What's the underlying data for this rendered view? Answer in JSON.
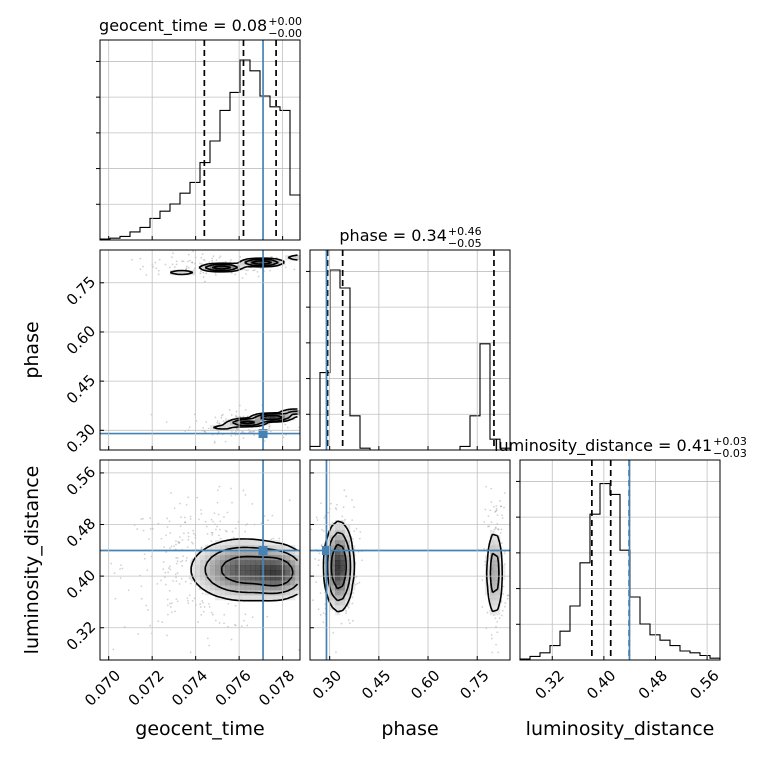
{
  "chart_data": {
    "type": "corner",
    "grid": true,
    "colors": {
      "truth": "#4682b4",
      "hist": "#000000",
      "density": "#000000",
      "grid": "#c0c0c0"
    },
    "parameters": [
      {
        "key": "geocent_time",
        "axis_label": "geocent_time",
        "title": {
          "prefix": "geocent_time = ",
          "median": "0.08",
          "plus": "+0.00",
          "minus": "−0.00"
        },
        "range": [
          0.0696,
          0.0788
        ],
        "ticks": [
          0.07,
          0.072,
          0.074,
          0.076,
          0.078
        ],
        "tick_labels": [
          "0.070",
          "0.072",
          "0.074",
          "0.076",
          "0.078"
        ],
        "truth": 0.0771,
        "quantiles": [
          0.0744,
          0.0762,
          0.0777
        ],
        "hist": {
          "edges": [
            0.0696,
            0.07006,
            0.07052,
            0.07098,
            0.07144,
            0.0719,
            0.07236,
            0.07282,
            0.07328,
            0.07374,
            0.0742,
            0.07466,
            0.07512,
            0.07558,
            0.07604,
            0.0765,
            0.07696,
            0.07742,
            0.07788,
            0.07834,
            0.0788
          ],
          "counts": [
            0.005,
            0.01,
            0.02,
            0.045,
            0.07,
            0.12,
            0.16,
            0.2,
            0.26,
            0.32,
            0.43,
            0.55,
            0.72,
            0.82,
            1.0,
            0.94,
            0.8,
            0.74,
            0.72,
            0.25
          ]
        }
      },
      {
        "key": "phase",
        "axis_label": "phase",
        "title": {
          "prefix": "phase = ",
          "median": "0.34",
          "plus": "+0.46",
          "minus": "−0.05"
        },
        "range": [
          0.24,
          0.85
        ],
        "ticks": [
          0.3,
          0.45,
          0.6,
          0.75
        ],
        "tick_labels": [
          "0.30",
          "0.45",
          "0.60",
          "0.75"
        ],
        "truth": 0.2902,
        "quantiles": [
          0.2936,
          0.3396,
          0.8011
        ],
        "hist": {
          "edges": [
            0.24,
            0.2705,
            0.301,
            0.3315,
            0.362,
            0.3925,
            0.423,
            0.4535,
            0.484,
            0.5145,
            0.545,
            0.5755,
            0.606,
            0.6365,
            0.667,
            0.6975,
            0.728,
            0.7585,
            0.789,
            0.8195,
            0.85
          ],
          "counts": [
            0.02,
            0.43,
            1.0,
            0.9,
            0.19,
            0.01,
            0,
            0,
            0,
            0,
            0,
            0,
            0,
            0,
            0,
            0.02,
            0.19,
            0.59,
            0.06,
            0.01
          ]
        }
      },
      {
        "key": "luminosity_distance",
        "axis_label": "luminosity_distance",
        "title": {
          "prefix": "luminosity_distance = ",
          "median": "0.41",
          "plus": "+0.03",
          "minus": "−0.03"
        },
        "range": [
          0.27,
          0.58
        ],
        "ticks": [
          0.32,
          0.4,
          0.48,
          0.56
        ],
        "tick_labels": [
          "0.32",
          "0.40",
          "0.48",
          "0.56"
        ],
        "truth": 0.4397,
        "quantiles": [
          0.3814,
          0.4106,
          0.4393
        ],
        "hist": {
          "edges": [
            0.27,
            0.2855,
            0.301,
            0.3165,
            0.332,
            0.3475,
            0.363,
            0.3785,
            0.394,
            0.4095,
            0.425,
            0.4405,
            0.456,
            0.4715,
            0.487,
            0.5025,
            0.518,
            0.5335,
            0.549,
            0.5645,
            0.58
          ],
          "counts": [
            0.005,
            0.02,
            0.04,
            0.08,
            0.16,
            0.3,
            0.54,
            0.81,
            0.98,
            0.92,
            0.61,
            0.35,
            0.2,
            0.14,
            0.11,
            0.08,
            0.05,
            0.04,
            0.025,
            0.01
          ]
        }
      }
    ],
    "pairs": [
      {
        "x": "geocent_time",
        "y": "phase",
        "modes": [
          {
            "cx": 0.0762,
            "cy": 0.805,
            "sx": 0.00165,
            "sy": 0.013,
            "r": 0.95,
            "w": 1.0
          },
          {
            "cx": 0.0772,
            "cy": 0.335,
            "sx": 0.00115,
            "sy": 0.014,
            "r": 0.9,
            "w": 1.0
          }
        ],
        "scatter": [
          {
            "x0": 0.0711,
            "x1": 0.0788,
            "y0": 0.76,
            "y1": 0.842,
            "n": 130
          },
          {
            "x0": 0.0734,
            "x1": 0.0788,
            "y0": 0.262,
            "y1": 0.376,
            "n": 130
          }
        ],
        "levels": [
          0.6,
          0.3,
          0.12
        ]
      },
      {
        "x": "geocent_time",
        "y": "luminosity_distance",
        "modes": [
          {
            "cx": 0.07615,
            "cy": 0.41,
            "sx": 0.0012,
            "sy": 0.024,
            "r": 0,
            "w": 1.0
          },
          {
            "cx": 0.0779,
            "cy": 0.405,
            "sx": 0.0007,
            "sy": 0.02,
            "r": 0,
            "w": 0.8
          }
        ],
        "scatter": [
          {
            "x0": 0.0702,
            "x1": 0.0788,
            "y0": 0.3,
            "y1": 0.53,
            "n": 360
          }
        ],
        "levels": [
          0.6,
          0.3,
          0.12
        ]
      },
      {
        "x": "phase",
        "y": "luminosity_distance",
        "modes": [
          {
            "cx": 0.328,
            "cy": 0.415,
            "sx": 0.022,
            "sy": 0.034,
            "r": 0,
            "w": 1.0
          },
          {
            "cx": 0.803,
            "cy": 0.405,
            "sx": 0.014,
            "sy": 0.038,
            "r": 0,
            "w": 0.45
          }
        ],
        "scatter": [
          {
            "x0": 0.255,
            "x1": 0.395,
            "y0": 0.31,
            "y1": 0.53,
            "n": 260
          },
          {
            "x0": 0.765,
            "x1": 0.845,
            "y0": 0.3,
            "y1": 0.54,
            "n": 170
          }
        ],
        "levels": [
          0.6,
          0.3,
          0.12
        ]
      }
    ]
  }
}
